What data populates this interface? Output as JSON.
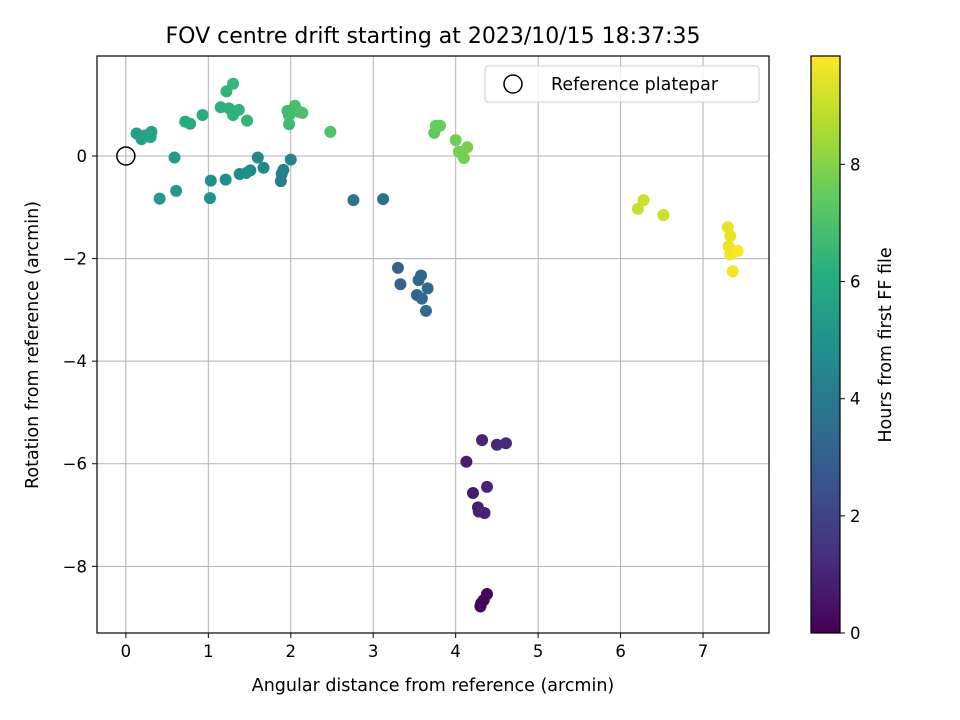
{
  "chart_data": {
    "type": "scatter",
    "title": "FOV centre drift starting at 2023/10/15 18:37:35",
    "xlabel": "Angular distance from reference (arcmin)",
    "ylabel": "Rotation from reference (arcmin)",
    "xlim": [
      -0.35,
      7.8
    ],
    "ylim": [
      -9.3,
      1.95
    ],
    "xticks": [
      0,
      1,
      2,
      3,
      4,
      5,
      6,
      7
    ],
    "yticks": [
      0,
      -2,
      -4,
      -6,
      -8
    ],
    "grid": true,
    "legend": {
      "position": "top-right",
      "entries": [
        "Reference platepar"
      ]
    },
    "colorbar": {
      "label": "Hours from first FF file",
      "range": [
        0,
        9.85
      ],
      "ticks": [
        0,
        2,
        4,
        6,
        8
      ],
      "colormap": "viridis"
    },
    "reference_point": {
      "x": 0,
      "y": 0,
      "label": "Reference platepar"
    },
    "points": [
      {
        "x": 4.3,
        "y": -8.78,
        "c": 0.0
      },
      {
        "x": 4.31,
        "y": -8.72,
        "c": 0.05
      },
      {
        "x": 4.34,
        "y": -8.66,
        "c": 0.1
      },
      {
        "x": 4.38,
        "y": -8.54,
        "c": 0.15
      },
      {
        "x": 4.13,
        "y": -5.96,
        "c": 0.75
      },
      {
        "x": 4.21,
        "y": -6.57,
        "c": 0.8
      },
      {
        "x": 4.27,
        "y": -6.85,
        "c": 0.85
      },
      {
        "x": 4.28,
        "y": -6.93,
        "c": 0.9
      },
      {
        "x": 4.35,
        "y": -6.96,
        "c": 0.95
      },
      {
        "x": 4.38,
        "y": -6.45,
        "c": 1.0
      },
      {
        "x": 4.32,
        "y": -5.54,
        "c": 1.05
      },
      {
        "x": 4.5,
        "y": -5.63,
        "c": 1.1
      },
      {
        "x": 4.61,
        "y": -5.6,
        "c": 1.15
      },
      {
        "x": 3.3,
        "y": -2.18,
        "c": 3.1
      },
      {
        "x": 3.33,
        "y": -2.5,
        "c": 3.15
      },
      {
        "x": 3.53,
        "y": -2.71,
        "c": 3.2
      },
      {
        "x": 3.55,
        "y": -2.42,
        "c": 3.25
      },
      {
        "x": 3.58,
        "y": -2.33,
        "c": 3.3
      },
      {
        "x": 3.59,
        "y": -2.78,
        "c": 3.35
      },
      {
        "x": 3.66,
        "y": -2.58,
        "c": 3.4
      },
      {
        "x": 3.64,
        "y": -3.02,
        "c": 3.45
      },
      {
        "x": 3.12,
        "y": -0.84,
        "c": 3.65
      },
      {
        "x": 2.76,
        "y": -0.86,
        "c": 3.85
      },
      {
        "x": 1.88,
        "y": -0.49,
        "c": 4.1
      },
      {
        "x": 1.89,
        "y": -0.35,
        "c": 4.2
      },
      {
        "x": 1.91,
        "y": -0.27,
        "c": 4.3
      },
      {
        "x": 2.0,
        "y": -0.07,
        "c": 4.4
      },
      {
        "x": 1.67,
        "y": -0.23,
        "c": 4.5
      },
      {
        "x": 1.6,
        "y": -0.03,
        "c": 4.55
      },
      {
        "x": 1.51,
        "y": -0.28,
        "c": 4.6
      },
      {
        "x": 1.38,
        "y": -0.35,
        "c": 4.7
      },
      {
        "x": 1.46,
        "y": -0.33,
        "c": 4.75
      },
      {
        "x": 1.21,
        "y": -0.46,
        "c": 4.85
      },
      {
        "x": 1.03,
        "y": -0.48,
        "c": 4.9
      },
      {
        "x": 1.02,
        "y": -0.82,
        "c": 4.95
      },
      {
        "x": 0.61,
        "y": -0.68,
        "c": 5.2
      },
      {
        "x": 0.41,
        "y": -0.83,
        "c": 5.25
      },
      {
        "x": 0.59,
        "y": -0.03,
        "c": 5.35
      },
      {
        "x": 0.13,
        "y": 0.44,
        "c": 5.5
      },
      {
        "x": 0.19,
        "y": 0.33,
        "c": 5.55
      },
      {
        "x": 0.23,
        "y": 0.4,
        "c": 5.6
      },
      {
        "x": 0.3,
        "y": 0.37,
        "c": 5.65
      },
      {
        "x": 0.31,
        "y": 0.47,
        "c": 5.7
      },
      {
        "x": 0.72,
        "y": 0.67,
        "c": 6.0
      },
      {
        "x": 0.78,
        "y": 0.63,
        "c": 6.05
      },
      {
        "x": 0.93,
        "y": 0.8,
        "c": 6.1
      },
      {
        "x": 1.15,
        "y": 0.95,
        "c": 6.2
      },
      {
        "x": 1.25,
        "y": 0.93,
        "c": 6.25
      },
      {
        "x": 1.3,
        "y": 0.8,
        "c": 6.3
      },
      {
        "x": 1.37,
        "y": 0.9,
        "c": 6.35
      },
      {
        "x": 1.47,
        "y": 0.69,
        "c": 6.4
      },
      {
        "x": 1.22,
        "y": 1.26,
        "c": 6.45
      },
      {
        "x": 1.3,
        "y": 1.41,
        "c": 6.5
      },
      {
        "x": 1.98,
        "y": 0.62,
        "c": 6.7
      },
      {
        "x": 1.96,
        "y": 0.88,
        "c": 6.75
      },
      {
        "x": 1.98,
        "y": 0.79,
        "c": 6.8
      },
      {
        "x": 2.05,
        "y": 0.98,
        "c": 6.85
      },
      {
        "x": 2.1,
        "y": 0.86,
        "c": 6.9
      },
      {
        "x": 2.14,
        "y": 0.84,
        "c": 6.95
      },
      {
        "x": 2.48,
        "y": 0.47,
        "c": 7.05
      },
      {
        "x": 3.74,
        "y": 0.45,
        "c": 7.4
      },
      {
        "x": 3.76,
        "y": 0.59,
        "c": 7.45
      },
      {
        "x": 3.81,
        "y": 0.59,
        "c": 7.5
      },
      {
        "x": 4.0,
        "y": 0.31,
        "c": 7.65
      },
      {
        "x": 4.04,
        "y": 0.08,
        "c": 7.7
      },
      {
        "x": 4.1,
        "y": -0.04,
        "c": 7.75
      },
      {
        "x": 4.14,
        "y": 0.17,
        "c": 7.8
      },
      {
        "x": 6.21,
        "y": -1.03,
        "c": 9.0
      },
      {
        "x": 6.28,
        "y": -0.86,
        "c": 9.05
      },
      {
        "x": 6.52,
        "y": -1.15,
        "c": 9.1
      },
      {
        "x": 7.3,
        "y": -1.39,
        "c": 9.5
      },
      {
        "x": 7.33,
        "y": -1.56,
        "c": 9.55
      },
      {
        "x": 7.31,
        "y": -1.76,
        "c": 9.6
      },
      {
        "x": 7.33,
        "y": -1.92,
        "c": 9.65
      },
      {
        "x": 7.36,
        "y": -2.25,
        "c": 9.7
      },
      {
        "x": 7.42,
        "y": -1.85,
        "c": 9.85
      }
    ]
  }
}
